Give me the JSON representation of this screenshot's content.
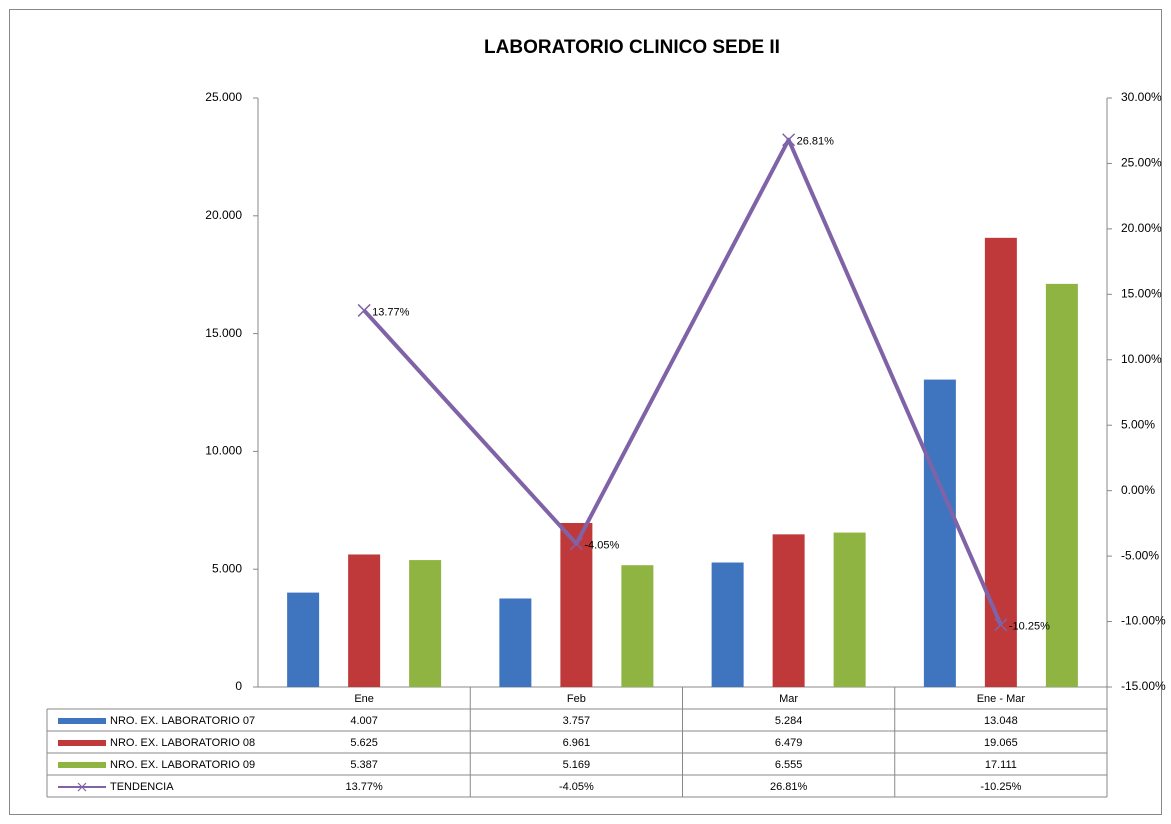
{
  "chart_data": {
    "type": "bar",
    "title": "LABORATORIO CLINICO SEDE II",
    "categories": [
      "Ene",
      "Feb",
      "Mar",
      "Ene - Mar"
    ],
    "series": [
      {
        "name": "NRO. EX. LABORATORIO 07",
        "color": "#3f75bf",
        "values": [
          4007,
          3757,
          5284,
          13048
        ],
        "value_labels": [
          "4.007",
          "3.757",
          "5.284",
          "13.048"
        ]
      },
      {
        "name": "NRO. EX. LABORATORIO 08",
        "color": "#c0393a",
        "values": [
          5625,
          6961,
          6479,
          19065
        ],
        "value_labels": [
          "5.625",
          "6.961",
          "6.479",
          "19.065"
        ]
      },
      {
        "name": "NRO. EX. LABORATORIO 09",
        "color": "#8fb441",
        "values": [
          5387,
          5169,
          6555,
          17111
        ],
        "value_labels": [
          "5.387",
          "5.169",
          "6.555",
          "17.111"
        ]
      },
      {
        "name": "TENDENCIA",
        "color": "#7f63a6",
        "type": "line",
        "axis": "y2",
        "values": [
          13.77,
          -4.05,
          26.81,
          -10.25
        ],
        "value_labels": [
          "13.77%",
          "-4.05%",
          "26.81%",
          "-10.25%"
        ]
      }
    ],
    "ylim": [
      0,
      25000
    ],
    "yticks": [
      0,
      {
        "value": 5000,
        "label": "5.000"
      },
      {
        "value": 10000,
        "label": "10.000"
      },
      {
        "value": 15000,
        "label": "15.000"
      },
      {
        "value": 20000,
        "label": "20.000"
      },
      {
        "value": 25000,
        "label": "25.000"
      }
    ],
    "y2lim": [
      -15,
      30
    ],
    "y2ticks": [
      {
        "value": -15,
        "label": "-15.00%"
      },
      {
        "value": -10,
        "label": "-10.00%"
      },
      {
        "value": -5,
        "label": "-5.00%"
      },
      {
        "value": 0,
        "label": "0.00%"
      },
      {
        "value": 5,
        "label": "5.00%"
      },
      {
        "value": 10,
        "label": "10.00%"
      },
      {
        "value": 15,
        "label": "15.00%"
      },
      {
        "value": 20,
        "label": "20.00%"
      },
      {
        "value": 25,
        "label": "25.00%"
      },
      {
        "value": 30,
        "label": "30.00%"
      }
    ],
    "grid": false
  }
}
